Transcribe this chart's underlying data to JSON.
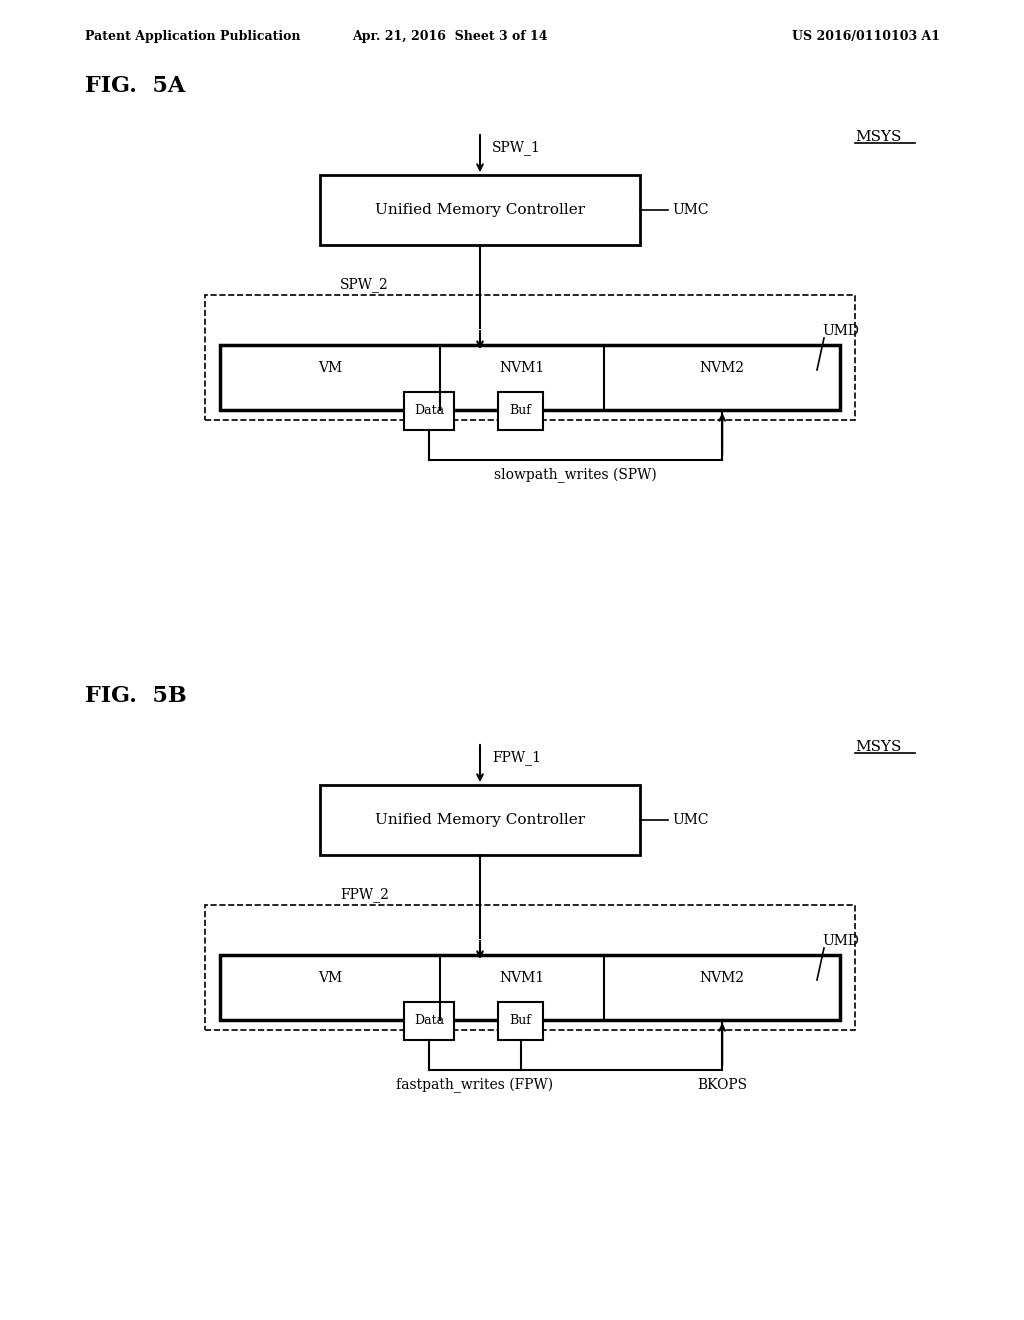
{
  "bg_color": "#ffffff",
  "text_color": "#000000",
  "header_left": "Patent Application Publication",
  "header_mid": "Apr. 21, 2016  Sheet 3 of 14",
  "header_right": "US 2016/0110103 A1",
  "fig5a_label": "FIG.  5A",
  "fig5b_label": "FIG.  5B",
  "msys_label": "MSYS",
  "umd_label": "UMD",
  "umc_label": "UMC",
  "umc_box_text": "Unified Memory Controller",
  "vm_label": "VM",
  "nvm1_label": "NVM1",
  "nvm2_label": "NVM2",
  "data_label": "Data",
  "buf_label": "Buf",
  "spw1_label": "SPW_1",
  "spw2_label": "SPW_2",
  "fpw1_label": "FPW_1",
  "fpw2_label": "FPW_2",
  "spw_label": "slowpath_writes (SPW)",
  "fpw_label": "fastpath_writes (FPW)",
  "bkops_label": "BKOPS"
}
